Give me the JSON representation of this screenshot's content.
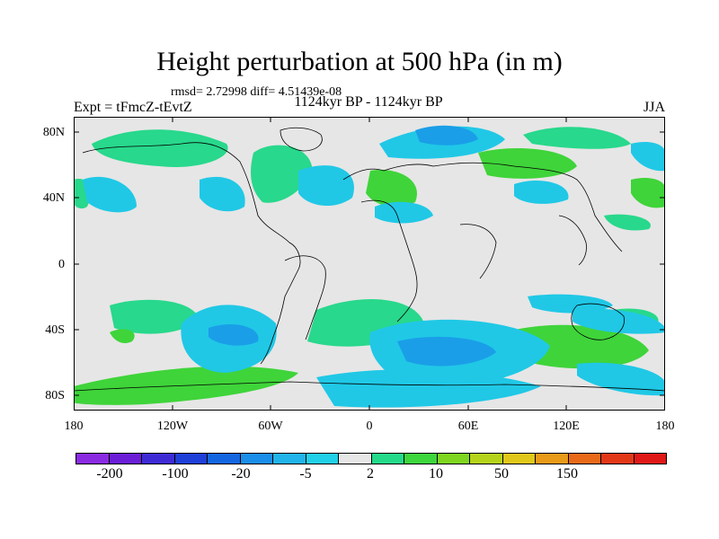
{
  "title": "Height perturbation at 500 hPa (in m)",
  "stats": "rmsd= 2.72998 diff= 4.51439e-08",
  "experiment": "Expt = tFmcZ-tEvtZ",
  "period": "1124kyr BP - 1124kyr BP",
  "season": "JJA",
  "lat_labels": [
    "80N",
    "40N",
    "0",
    "40S",
    "80S"
  ],
  "lon_labels": [
    "180",
    "120W",
    "60W",
    "0",
    "60E",
    "120E",
    "180"
  ],
  "colorbar": {
    "colors": [
      "#8a2be2",
      "#6a1fd6",
      "#3f2bd6",
      "#1e3fd8",
      "#1466e0",
      "#1a8ee8",
      "#20b4ea",
      "#20d0e8",
      "#e6e6e6",
      "#25d98a",
      "#3dd63d",
      "#7fd620",
      "#b5d31a",
      "#e0c81a",
      "#e89a18",
      "#e86a18",
      "#e23818",
      "#e01818"
    ],
    "labels": [
      "-200",
      "-100",
      "-20",
      "-5",
      "2",
      "10",
      "50",
      "150"
    ]
  },
  "map_colors": {
    "background": "#e6e6e6",
    "neg_weak": "#20c8e6",
    "neg_mid": "#1a9ee8",
    "neg_strong": "#1466e0",
    "pos_weak": "#28d88c",
    "pos_mid": "#3fd43a"
  }
}
